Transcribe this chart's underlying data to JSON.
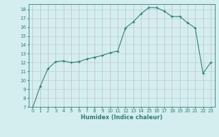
{
  "xlabel": "Humidex (Indice chaleur)",
  "x_points": [
    0,
    1,
    2,
    3,
    4,
    5,
    6,
    7,
    8,
    9,
    10,
    11,
    12,
    13,
    14,
    15,
    16,
    17,
    18,
    19,
    20,
    21,
    22,
    23
  ],
  "y_points": [
    6.8,
    9.3,
    11.3,
    12.1,
    12.2,
    12.0,
    12.1,
    12.4,
    12.6,
    12.8,
    13.1,
    13.3,
    15.9,
    16.6,
    17.5,
    18.2,
    18.2,
    17.8,
    17.2,
    17.2,
    16.5,
    15.9,
    10.8,
    12.0
  ],
  "line_color": "#2e7d6e",
  "marker_color": "#2e7d6e",
  "bg_color": "#d4eef0",
  "grid_color_x": "#c8b8b8",
  "grid_color_y": "#b8cece",
  "ylim": [
    7,
    18.6
  ],
  "xlim": [
    -0.5,
    23.5
  ],
  "yticks": [
    7,
    8,
    9,
    10,
    11,
    12,
    13,
    14,
    15,
    16,
    17,
    18
  ],
  "xticks": [
    0,
    1,
    2,
    3,
    4,
    5,
    6,
    7,
    8,
    9,
    10,
    11,
    12,
    13,
    14,
    15,
    16,
    17,
    18,
    19,
    20,
    21,
    22,
    23
  ],
  "tick_fontsize": 5.0,
  "xlabel_fontsize": 6.0
}
